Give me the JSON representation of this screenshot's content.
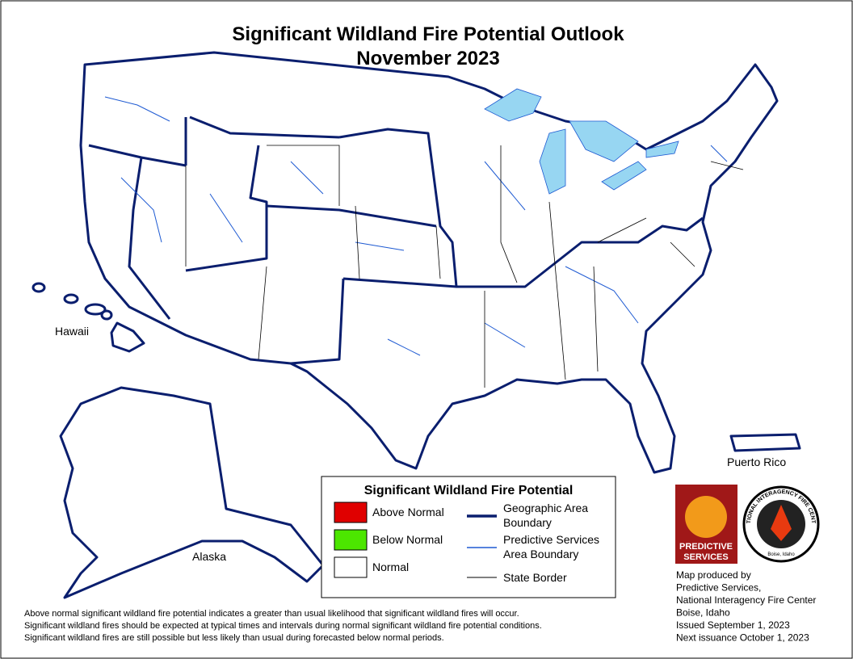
{
  "header": {
    "title": "Significant Wildland Fire Potential Outlook",
    "subtitle": "November 2023"
  },
  "map": {
    "labels": {
      "hawaii": "Hawaii",
      "alaska": "Alaska",
      "puerto_rico": "Puerto Rico"
    },
    "hawaii_fill": "#e00000"
  },
  "legend": {
    "title": "Significant Wildland Fire Potential",
    "fill_items": [
      {
        "label": "Above Normal",
        "color": "#e00000"
      },
      {
        "label": "Below Normal",
        "color": "#4ce600"
      },
      {
        "label": "Normal",
        "color": "#ffffff"
      }
    ],
    "line_items": [
      {
        "label": "Geographic Area Boundary",
        "color": "#0a1e6e"
      },
      {
        "label": "Predictive Services Area Boundary",
        "color": "#1e5ad2"
      },
      {
        "label": "State Border",
        "color": "#000000"
      }
    ]
  },
  "footnote": [
    "Above normal significant wildland fire potential indicates a greater than usual likelihood that significant wildland fires will occur.",
    "Significant wildland fires should be expected at typical times and intervals during normal significant wildland fire potential conditions.",
    "Significant wildland fires are still possible but less likely than usual during forecasted below normal periods."
  ],
  "logos": {
    "predictive_services": [
      "PREDICTIVE",
      "SERVICES"
    ],
    "nifc": "NATIONAL INTERAGENCY FIRE CENTER",
    "nifc_city": "Boise, Idaho"
  },
  "credits": [
    "Map produced by",
    "Predictive Services,",
    "National Interagency Fire Center",
    "Boise, Idaho",
    "Issued September 1, 2023",
    "Next issuance October 1, 2023"
  ]
}
